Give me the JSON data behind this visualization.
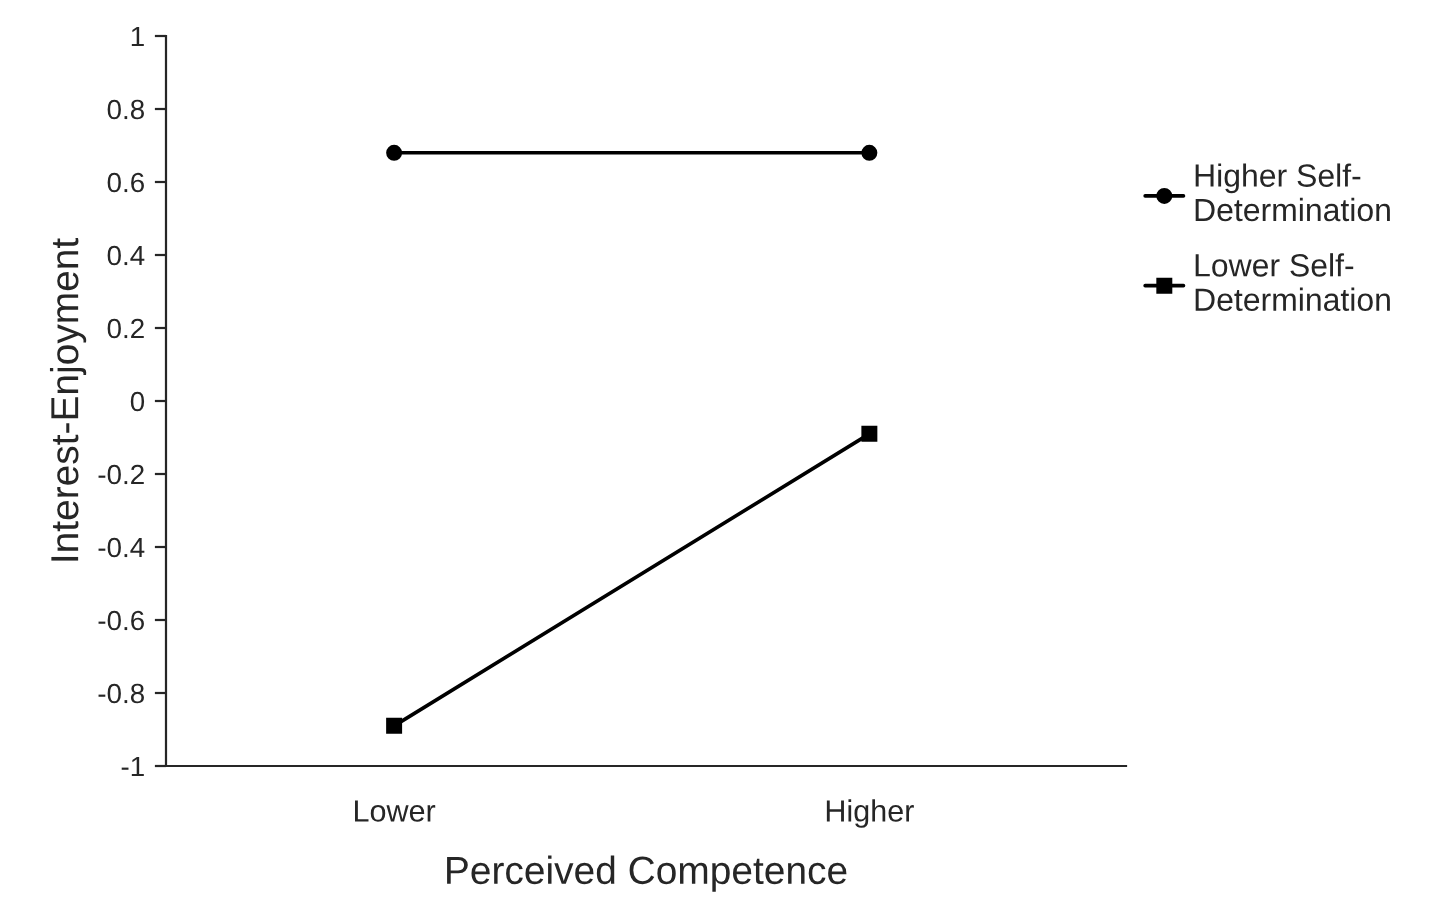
{
  "chart_data": {
    "type": "line",
    "xlabel": "Perceived Competence",
    "ylabel": "Interest-Enjoyment",
    "categories": [
      "Lower",
      "Higher"
    ],
    "series": [
      {
        "name": "Higher Self-Determination",
        "color": "#000000",
        "marker": "circle",
        "values": [
          0.68,
          0.68
        ]
      },
      {
        "name": "Lower Self-Determination",
        "color": "#000000",
        "marker": "square",
        "values": [
          -0.89,
          -0.09
        ]
      }
    ],
    "ylim": [
      -1,
      1
    ],
    "yticks": [
      {
        "value": -1,
        "label": "-1"
      },
      {
        "value": -0.8,
        "label": "-0.8"
      },
      {
        "value": -0.6,
        "label": "-0.6"
      },
      {
        "value": -0.4,
        "label": "-0.4"
      },
      {
        "value": -0.2,
        "label": "-0.2"
      },
      0,
      0.2,
      0.4,
      0.6,
      0.8,
      1
    ],
    "grid": false,
    "legend": "right",
    "line_style": "solid"
  }
}
